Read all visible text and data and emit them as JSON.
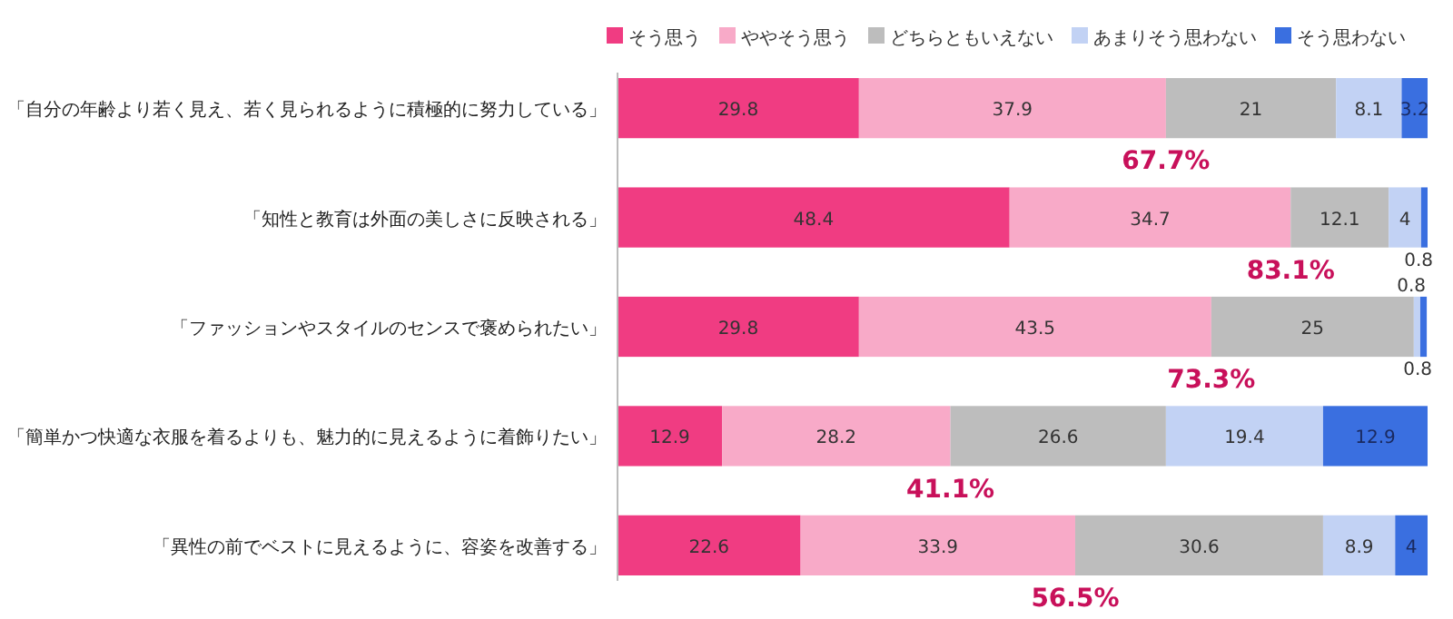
{
  "chart_data": {
    "type": "bar",
    "orientation": "horizontal",
    "stacked": true,
    "data_labels": true,
    "legend": "top",
    "tick_labels": "y",
    "categories": [
      "「自分の年齢より若く見え、若く見られるように積極的に努力している」",
      "「知性と教育は外面の美しさに反映される」",
      "「ファッションやスタイルのセンスで褒められたい」",
      "「簡単かつ快適な衣服を着るよりも、魅力的に見えるように着飾りたい」",
      "「異性の前でベストに見えるように、容姿を改善する」"
    ],
    "series": [
      {
        "name": "そう思う",
        "color": "#f03c82",
        "values": [
          29.8,
          48.4,
          29.8,
          12.9,
          22.6
        ]
      },
      {
        "name": "ややそう思う",
        "color": "#f8aac8",
        "values": [
          37.9,
          34.7,
          43.5,
          28.2,
          33.9
        ]
      },
      {
        "name": "どちらともいえない",
        "color": "#bdbdbd",
        "values": [
          21,
          12.1,
          25,
          26.6,
          30.6
        ]
      },
      {
        "name": "あまりそう思わない",
        "color": "#c2d2f4",
        "values": [
          8.1,
          4,
          0.8,
          19.4,
          8.9
        ]
      },
      {
        "name": "そう思わない",
        "color": "#3a6fe0",
        "values": [
          3.2,
          0.8,
          0.8,
          12.9,
          4
        ]
      }
    ],
    "annotations": [
      {
        "text": "67.7%",
        "x": 67.7,
        "y": "「自分の年齢より若く見え、若く見られるように積極的に努力している」"
      },
      {
        "text": "83.1%",
        "x": 83.1,
        "y": "「知性と教育は外面の美しさに反映される」"
      },
      {
        "text": "73.3%",
        "x": 73.3,
        "y": "「ファッションやスタイルのセンスで褒められたい」"
      },
      {
        "text": "41.1%",
        "x": 41.1,
        "y": "「簡単かつ快適な衣服を着るよりも、魅力的に見えるように着飾りたい」"
      },
      {
        "text": "56.5%",
        "x": 56.5,
        "y": "「異性の前でベストに見えるように、容姿を改善する」"
      }
    ]
  }
}
